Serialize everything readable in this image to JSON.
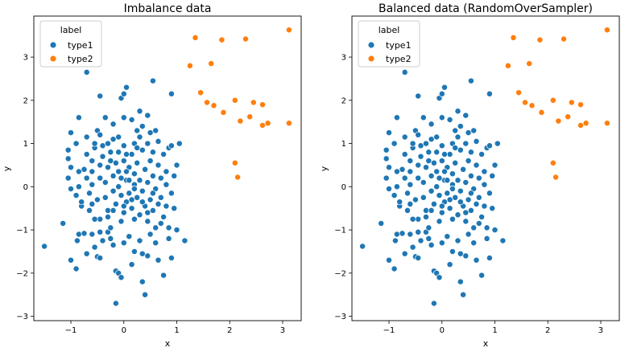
{
  "chart_data": [
    {
      "type": "scatter",
      "title": "Imbalance data",
      "xlabel": "x",
      "ylabel": "y",
      "xlim": [
        -1.7,
        3.35
      ],
      "ylim": [
        -3.1,
        3.95
      ],
      "xticks": [
        -1,
        0,
        1,
        2,
        3
      ],
      "yticks": [
        -3,
        -2,
        -1,
        0,
        1,
        2,
        3
      ],
      "xtick_labels": [
        "−1",
        "0",
        "1",
        "2",
        "3"
      ],
      "ytick_labels": [
        "−3",
        "−2",
        "−1",
        "0",
        "1",
        "2",
        "3"
      ],
      "legend": {
        "title": "label",
        "location": "top-left",
        "entries": [
          "type1",
          "type2"
        ]
      },
      "series": [
        {
          "name": "type1",
          "color": "#1f77b4",
          "points": [
            [
              -1.5,
              -1.38
            ],
            [
              -1.15,
              -0.85
            ],
            [
              -1.0,
              -1.7
            ],
            [
              -0.9,
              -1.9
            ],
            [
              -0.85,
              -1.1
            ],
            [
              -0.88,
              -1.25
            ],
            [
              -0.75,
              -1.08
            ],
            [
              -0.7,
              -1.55
            ],
            [
              -0.6,
              -1.1
            ],
            [
              -0.55,
              -1.4
            ],
            [
              -0.5,
              -1.62
            ],
            [
              -0.45,
              -1.65
            ],
            [
              -0.45,
              -1.05
            ],
            [
              -0.4,
              -1.25
            ],
            [
              -0.3,
              -1.05
            ],
            [
              -0.25,
              -1.2
            ],
            [
              -0.2,
              -1.35
            ],
            [
              -0.15,
              -1.95
            ],
            [
              -0.1,
              -2.0
            ],
            [
              -0.05,
              -2.1
            ],
            [
              -0.15,
              -2.7
            ],
            [
              0.15,
              -1.8
            ],
            [
              0.2,
              -1.5
            ],
            [
              0.3,
              -1.25
            ],
            [
              0.35,
              -1.55
            ],
            [
              0.4,
              -2.5
            ],
            [
              0.35,
              -2.2
            ],
            [
              0.45,
              -1.6
            ],
            [
              0.6,
              -1.3
            ],
            [
              0.65,
              -1.7
            ],
            [
              0.9,
              -1.65
            ],
            [
              1.15,
              -1.25
            ],
            [
              0.85,
              -1.2
            ],
            [
              0.5,
              -1.1
            ],
            [
              0.1,
              -1.15
            ],
            [
              0.0,
              -1.3
            ],
            [
              -0.25,
              -0.95
            ],
            [
              0.75,
              -2.05
            ],
            [
              -1.05,
              0.2
            ],
            [
              -1.0,
              0.45
            ],
            [
              -1.05,
              0.65
            ],
            [
              -1.05,
              0.85
            ],
            [
              -1.0,
              1.25
            ],
            [
              -0.9,
              1.0
            ],
            [
              -0.9,
              -0.2
            ],
            [
              -0.8,
              -0.45
            ],
            [
              -0.85,
              0.0
            ],
            [
              -0.85,
              0.35
            ],
            [
              -0.75,
              0.4
            ],
            [
              -0.7,
              0.2
            ],
            [
              -0.6,
              0.6
            ],
            [
              -0.6,
              0.35
            ],
            [
              -0.6,
              -0.4
            ],
            [
              -0.55,
              0.9
            ],
            [
              -0.5,
              1.3
            ],
            [
              -0.45,
              0.2
            ],
            [
              -0.45,
              -0.75
            ],
            [
              -0.4,
              0.7
            ],
            [
              -0.35,
              0.1
            ],
            [
              -0.35,
              -0.25
            ],
            [
              -0.3,
              0.45
            ],
            [
              -0.3,
              -0.55
            ],
            [
              -0.25,
              0.8
            ],
            [
              -0.2,
              0.25
            ],
            [
              -0.2,
              -0.1
            ],
            [
              -0.15,
              0.55
            ],
            [
              -0.15,
              -0.4
            ],
            [
              -0.1,
              0.0
            ],
            [
              -0.1,
              0.35
            ],
            [
              -0.05,
              -0.2
            ],
            [
              0.0,
              0.6
            ],
            [
              0.0,
              -0.6
            ],
            [
              0.05,
              0.15
            ],
            [
              0.05,
              -0.35
            ],
            [
              0.1,
              0.45
            ],
            [
              0.1,
              -0.15
            ],
            [
              0.15,
              0.75
            ],
            [
              0.15,
              -0.5
            ],
            [
              0.2,
              0.05
            ],
            [
              0.2,
              0.3
            ],
            [
              0.25,
              -0.25
            ],
            [
              0.25,
              0.55
            ],
            [
              0.3,
              -0.65
            ],
            [
              0.3,
              0.15
            ],
            [
              0.35,
              0.85
            ],
            [
              0.35,
              -0.1
            ],
            [
              0.4,
              0.4
            ],
            [
              0.4,
              -0.45
            ],
            [
              0.45,
              0.1
            ],
            [
              0.45,
              -0.8
            ],
            [
              0.5,
              0.6
            ],
            [
              0.5,
              -0.3
            ],
            [
              0.55,
              0.25
            ],
            [
              0.55,
              -0.55
            ],
            [
              0.6,
              -0.05
            ],
            [
              0.65,
              0.5
            ],
            [
              0.65,
              -0.4
            ],
            [
              0.7,
              0.2
            ],
            [
              0.75,
              -0.7
            ],
            [
              0.8,
              0.05
            ],
            [
              0.8,
              -0.45
            ],
            [
              0.85,
              0.9
            ],
            [
              0.9,
              -0.15
            ],
            [
              0.95,
              -0.5
            ],
            [
              1.0,
              0.5
            ],
            [
              1.05,
              1.0
            ],
            [
              1.0,
              -1.0
            ],
            [
              0.85,
              -0.95
            ],
            [
              0.7,
              -0.85
            ],
            [
              0.6,
              -0.95
            ],
            [
              0.2,
              -0.75
            ],
            [
              -0.05,
              -0.8
            ],
            [
              -0.3,
              -0.7
            ],
            [
              -0.55,
              -0.75
            ],
            [
              -0.65,
              -0.15
            ],
            [
              -0.7,
              0.75
            ],
            [
              -0.55,
              1.0
            ],
            [
              -0.4,
              0.95
            ],
            [
              -0.3,
              1.0
            ],
            [
              -0.2,
              1.1
            ],
            [
              -0.1,
              1.15
            ],
            [
              0.0,
              0.95
            ],
            [
              0.05,
              0.75
            ],
            [
              0.2,
              1.0
            ],
            [
              0.25,
              1.3
            ],
            [
              0.3,
              1.15
            ],
            [
              0.35,
              1.4
            ],
            [
              0.45,
              1.0
            ],
            [
              0.5,
              1.25
            ],
            [
              0.6,
              1.3
            ],
            [
              0.65,
              1.05
            ],
            [
              0.75,
              0.75
            ],
            [
              0.9,
              0.95
            ],
            [
              0.45,
              1.65
            ],
            [
              0.3,
              1.75
            ],
            [
              0.15,
              1.55
            ],
            [
              0.0,
              1.6
            ],
            [
              -0.2,
              1.45
            ],
            [
              -0.35,
              1.6
            ],
            [
              -0.45,
              1.2
            ],
            [
              -0.7,
              1.15
            ],
            [
              -0.85,
              1.6
            ],
            [
              -0.45,
              2.1
            ],
            [
              -0.05,
              2.05
            ],
            [
              0.0,
              2.15
            ],
            [
              0.05,
              2.3
            ],
            [
              0.55,
              2.45
            ],
            [
              -0.7,
              2.65
            ],
            [
              0.9,
              2.15
            ],
            [
              -1.0,
              -0.05
            ],
            [
              -0.8,
              -0.35
            ],
            [
              -0.65,
              -0.55
            ],
            [
              -0.5,
              -0.3
            ],
            [
              -0.2,
              -0.55
            ],
            [
              0.0,
              -0.45
            ],
            [
              0.15,
              -0.3
            ],
            [
              0.35,
              -0.35
            ],
            [
              0.45,
              -0.6
            ],
            [
              0.55,
              -0.15
            ],
            [
              0.7,
              -0.25
            ],
            [
              0.95,
              0.25
            ],
            [
              0.8,
              0.35
            ],
            [
              0.55,
              0.8
            ],
            [
              0.25,
              0.9
            ],
            [
              -0.1,
              0.8
            ],
            [
              -0.25,
              0.6
            ],
            [
              -0.45,
              0.5
            ],
            [
              -0.6,
              0.05
            ],
            [
              0.1,
              0.15
            ],
            [
              0.2,
              -0.05
            ],
            [
              0.05,
              0.35
            ],
            [
              -0.05,
              0.2
            ]
          ]
        },
        {
          "name": "type2",
          "color": "#ff7f0e",
          "points": [
            [
              1.35,
              3.45
            ],
            [
              1.25,
              2.8
            ],
            [
              1.65,
              2.85
            ],
            [
              1.85,
              3.4
            ],
            [
              2.3,
              3.42
            ],
            [
              3.12,
              3.63
            ],
            [
              1.45,
              2.18
            ],
            [
              1.57,
              1.95
            ],
            [
              1.7,
              1.88
            ],
            [
              1.88,
              1.72
            ],
            [
              2.1,
              2.0
            ],
            [
              2.2,
              1.52
            ],
            [
              2.38,
              1.62
            ],
            [
              2.45,
              1.95
            ],
            [
              2.62,
              1.9
            ],
            [
              2.62,
              1.42
            ],
            [
              2.72,
              1.47
            ],
            [
              3.12,
              1.47
            ],
            [
              2.1,
              0.55
            ],
            [
              2.15,
              0.22
            ]
          ]
        }
      ]
    },
    {
      "type": "scatter",
      "title": "Balanced data (RandomOverSampler)",
      "xlabel": "x",
      "ylabel": "y",
      "xlim": [
        -1.7,
        3.35
      ],
      "ylim": [
        -3.1,
        3.95
      ],
      "xticks": [
        -1,
        0,
        1,
        2,
        3
      ],
      "yticks": [
        -3,
        -2,
        -1,
        0,
        1,
        2,
        3
      ],
      "xtick_labels": [
        "−1",
        "0",
        "1",
        "2",
        "3"
      ],
      "ytick_labels": [
        "−3",
        "−2",
        "−1",
        "0",
        "1",
        "2",
        "3"
      ],
      "legend": {
        "title": "label",
        "location": "top-left",
        "entries": [
          "type1",
          "type2"
        ]
      },
      "series": [
        {
          "name": "type1",
          "color": "#1f77b4",
          "same_as_panel": 0
        },
        {
          "name": "type2",
          "color": "#ff7f0e",
          "same_as_panel": 0
        }
      ]
    }
  ]
}
